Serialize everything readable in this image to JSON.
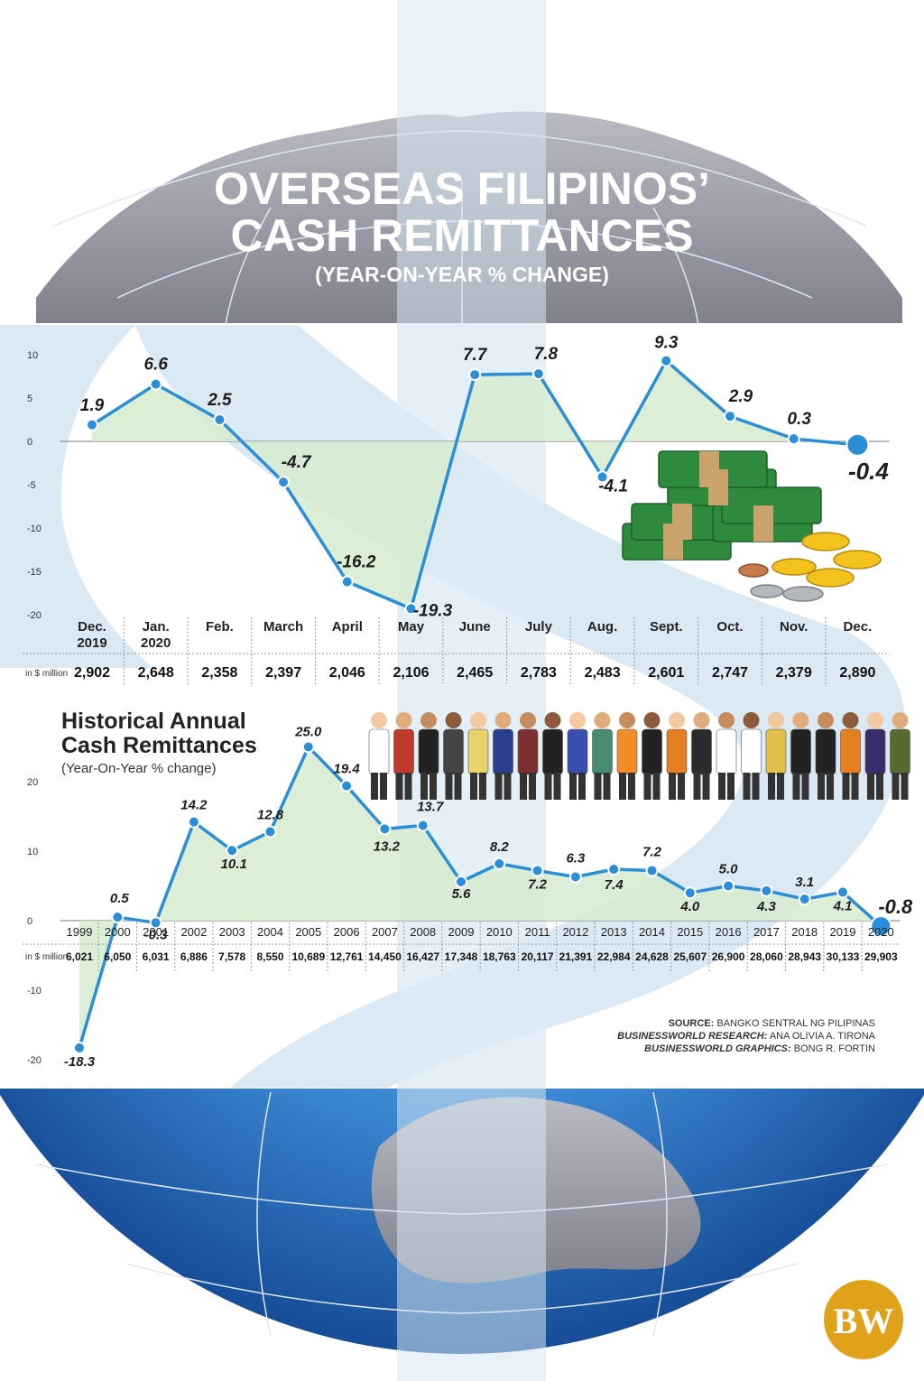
{
  "header": {
    "title_line1": "OVERSEAS FILIPINOS’",
    "title_line2": "CASH REMITTANCES",
    "subtitle": "(YEAR-ON-YEAR % CHANGE)"
  },
  "historical_header": {
    "title_line1": "Historical Annual",
    "title_line2": "Cash Remittances",
    "subtitle": "(Year-On-Year % change)"
  },
  "source": {
    "line1_label": "SOURCE:",
    "line1_value": "BANGKO SENTRAL NG PILIPINAS",
    "line2_label": "BUSINESSWORLD RESEARCH:",
    "line2_value": "ANA OLIVIA A. TIRONA",
    "line3_label": "BUSINESSWORLD GRAPHICS:",
    "line3_value": "BONG R. FORTIN"
  },
  "logo": {
    "text": "BW"
  },
  "colors": {
    "line": "#2a8fd8",
    "area": "#d7ebcf",
    "globe": "#2f73c4",
    "panel": "#dbe9f4",
    "logo": "#e0a21a"
  },
  "chart_data": [
    {
      "type": "line",
      "categories": [
        [
          "Dec.",
          "2019"
        ],
        [
          "Jan.",
          "2020"
        ],
        [
          "Feb."
        ],
        [
          "March"
        ],
        [
          "April"
        ],
        [
          "May"
        ],
        [
          "June"
        ],
        [
          "July"
        ],
        [
          "Aug."
        ],
        [
          "Sept."
        ],
        [
          "Oct."
        ],
        [
          "Nov."
        ],
        [
          "Dec."
        ]
      ],
      "values": [
        1.9,
        6.6,
        2.5,
        -4.7,
        -16.2,
        -19.3,
        7.7,
        7.8,
        -4.1,
        9.3,
        2.9,
        0.3,
        -0.4
      ],
      "value_labels": [
        "1.9",
        "6.6",
        "2.5",
        "-4.7",
        "-16.2",
        "-19.3",
        "7.7",
        "7.8",
        "-4.1",
        "9.3",
        "2.9",
        "0.3",
        "-0.4"
      ],
      "yticks": [
        10,
        5,
        0,
        -5,
        -10,
        -15,
        -20
      ],
      "ylim": [
        -20,
        10
      ],
      "table_label": "in $ million",
      "table_values": [
        "2,902",
        "2,648",
        "2,358",
        "2,397",
        "2,046",
        "2,106",
        "2,465",
        "2,783",
        "2,483",
        "2,601",
        "2,747",
        "2,379",
        "2,890"
      ]
    },
    {
      "type": "line",
      "categories": [
        "1999",
        "2000",
        "2001",
        "2002",
        "2003",
        "2004",
        "2005",
        "2006",
        "2007",
        "2008",
        "2009",
        "2010",
        "2011",
        "2012",
        "2013",
        "2014",
        "2015",
        "2016",
        "2017",
        "2018",
        "2019",
        "2020"
      ],
      "values": [
        -18.3,
        0.5,
        -0.3,
        14.2,
        10.1,
        12.8,
        25.0,
        19.4,
        13.2,
        13.7,
        5.6,
        8.2,
        7.2,
        6.3,
        7.4,
        7.2,
        4.0,
        5.0,
        4.3,
        3.1,
        4.1,
        -0.8
      ],
      "value_labels": [
        "-18.3",
        "0.5",
        "-0.3",
        "14.2",
        "10.1",
        "12.8",
        "25.0",
        "19.4",
        "13.2",
        "13.7",
        "5.6",
        "8.2",
        "7.2",
        "6.3",
        "7.4",
        "7.2",
        "4.0",
        "5.0",
        "4.3",
        "3.1",
        "4.1",
        "-0.8"
      ],
      "yticks": [
        20,
        10,
        0,
        -10,
        -20
      ],
      "ylim": [
        -20,
        25
      ],
      "table_label": "in $ million",
      "table_values": [
        "6,021",
        "6,050",
        "6,031",
        "6,886",
        "7,578",
        "8,550",
        "10,689",
        "12,761",
        "14,450",
        "16,427",
        "17,348",
        "18,763",
        "20,117",
        "21,391",
        "22,984",
        "24,628",
        "25,607",
        "26,900",
        "28,060",
        "28,943",
        "30,133",
        "29,903"
      ]
    }
  ]
}
